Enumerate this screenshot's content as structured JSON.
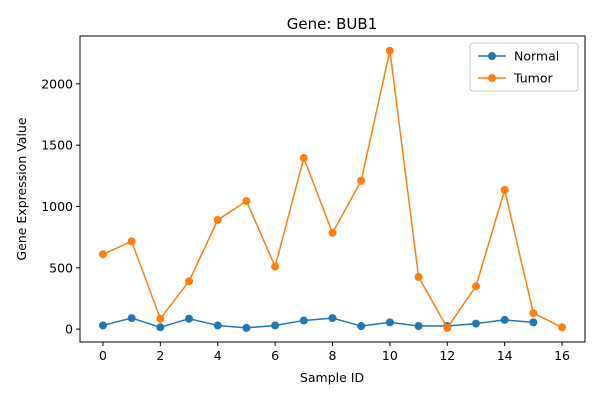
{
  "chart_data": {
    "type": "line",
    "title": "Gene: BUB1",
    "xlabel": "Sample ID",
    "ylabel": "Gene Expression Value",
    "xlim": [
      -0.8,
      16.8
    ],
    "ylim": [
      -105,
      2390
    ],
    "x_ticks": [
      0,
      2,
      4,
      6,
      8,
      10,
      12,
      14,
      16
    ],
    "y_ticks": [
      0,
      500,
      1000,
      1500,
      2000
    ],
    "grid": false,
    "legend_position": "top-right",
    "series": [
      {
        "name": "Normal",
        "color": "#1f77b4",
        "x": [
          0,
          1,
          2,
          3,
          4,
          5,
          6,
          7,
          8,
          9,
          10,
          11,
          12,
          13,
          14,
          15
        ],
        "y": [
          30,
          90,
          15,
          85,
          30,
          10,
          30,
          70,
          90,
          25,
          55,
          25,
          25,
          45,
          75,
          55
        ]
      },
      {
        "name": "Tumor",
        "color": "#ff7f0e",
        "x": [
          0,
          1,
          2,
          3,
          4,
          5,
          6,
          7,
          8,
          9,
          10,
          11,
          12,
          13,
          14,
          15,
          16
        ],
        "y": [
          610,
          715,
          85,
          390,
          890,
          1045,
          510,
          1395,
          785,
          1210,
          2270,
          425,
          10,
          350,
          1135,
          130,
          15
        ]
      }
    ]
  }
}
